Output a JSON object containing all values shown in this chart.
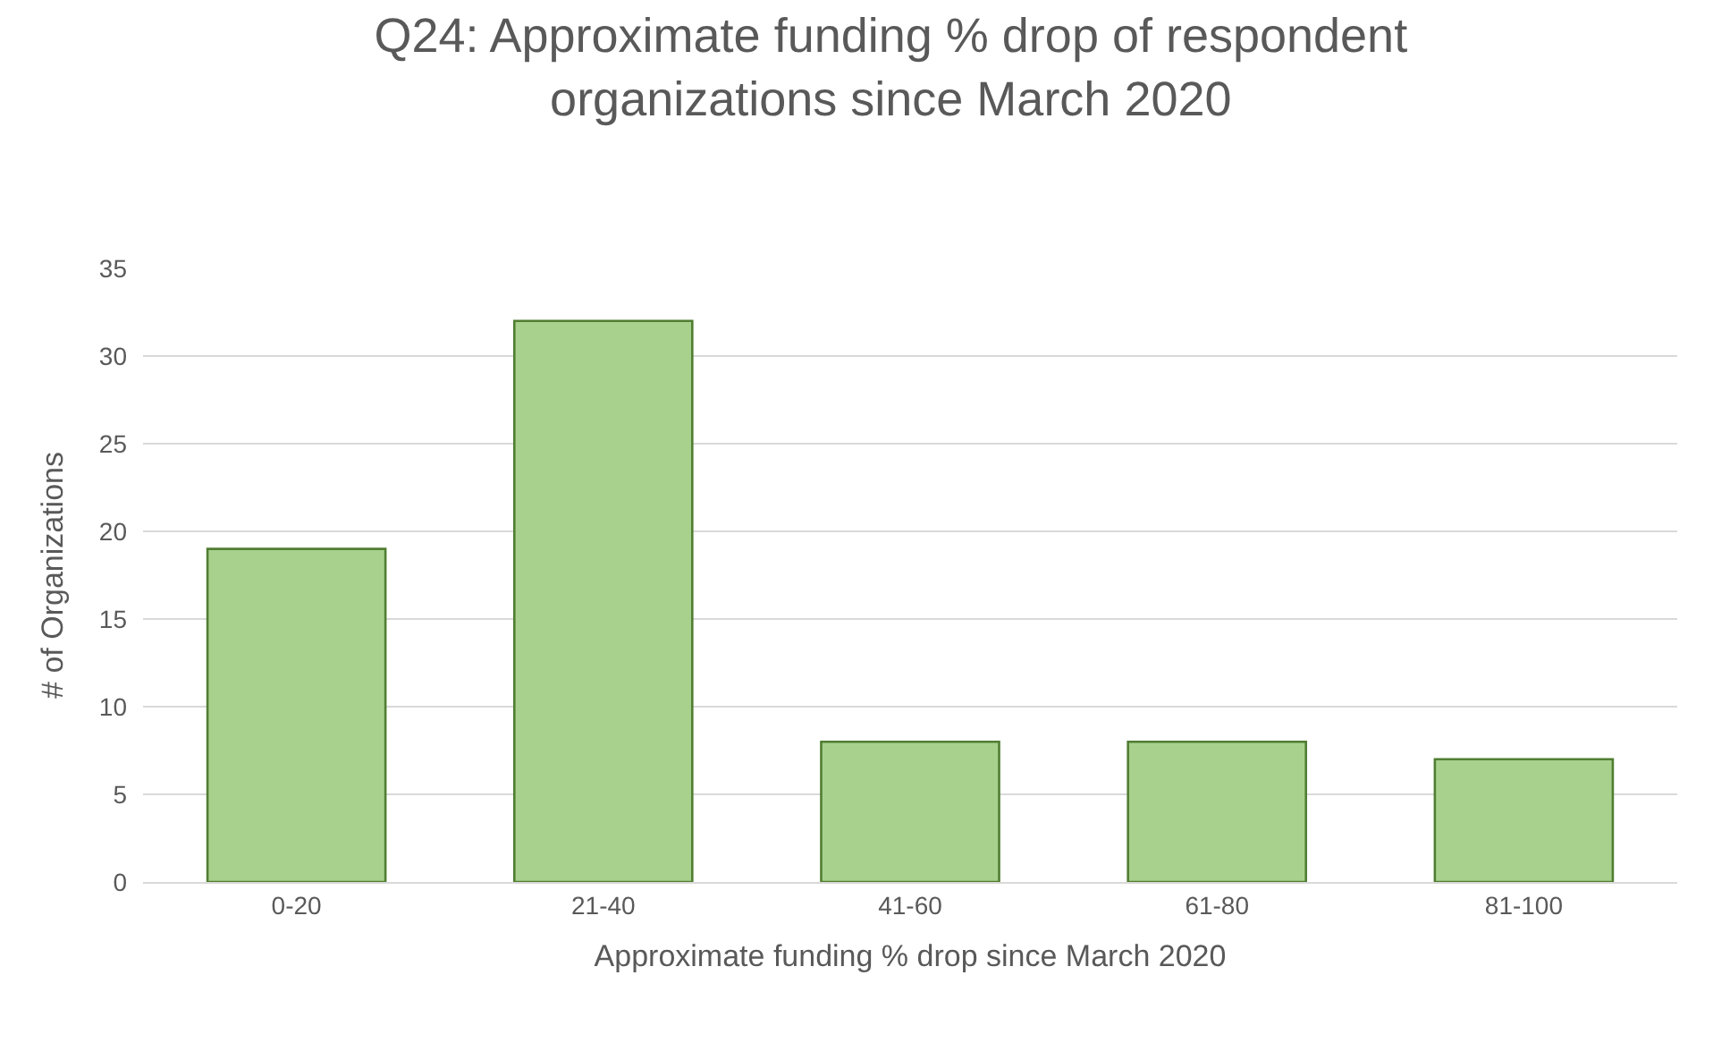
{
  "chart_data": {
    "type": "bar",
    "title": "Q24: Approximate funding % drop of respondent organizations since March 2020",
    "xlabel": "Approximate funding % drop since March 2020",
    "ylabel": "# of Organizations",
    "categories": [
      "0-20",
      "21-40",
      "41-60",
      "61-80",
      "81-100"
    ],
    "values": [
      19,
      32,
      8,
      8,
      7
    ],
    "color": "#a9d18e",
    "ylim": [
      0,
      35
    ],
    "yticks": [
      0,
      5,
      10,
      15,
      20,
      25,
      30,
      35
    ],
    "grid": "y"
  }
}
